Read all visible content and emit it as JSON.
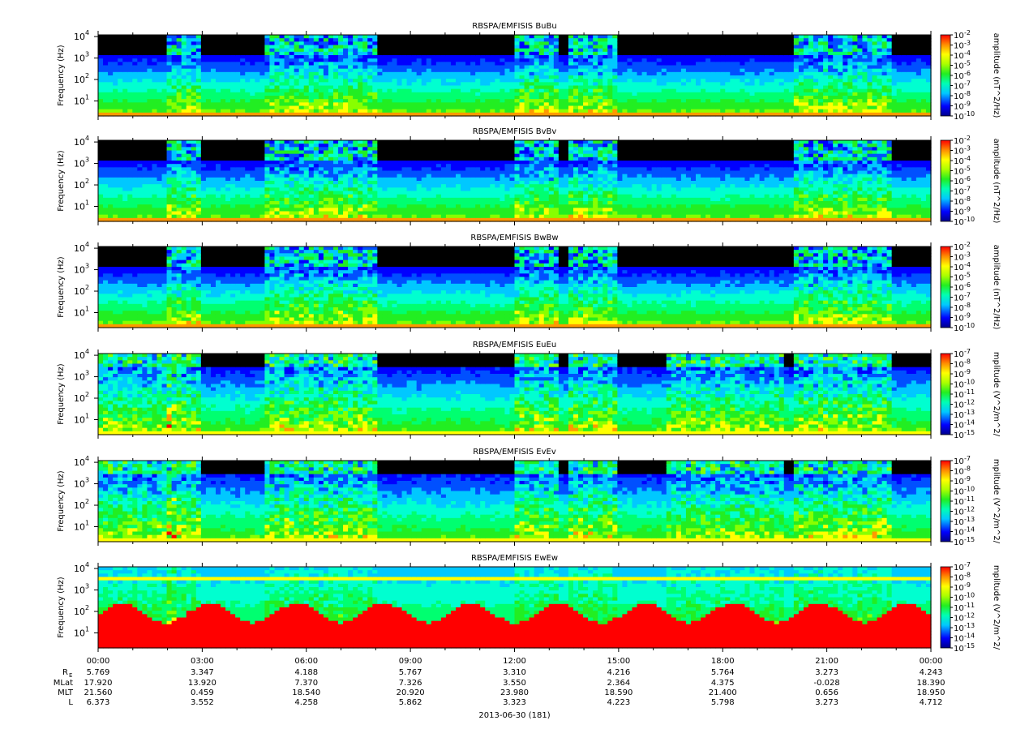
{
  "chart_data": {
    "type": "heatmap",
    "date_label": "2013-06-30 (181)",
    "xaxis": {
      "tick_labels": [
        "00:00",
        "03:00",
        "06:00",
        "09:00",
        "12:00",
        "15:00",
        "18:00",
        "21:00",
        "00:00"
      ],
      "range_hours": [
        0,
        24
      ]
    },
    "yaxis": {
      "label": "Frequency (Hz)",
      "scale": "log",
      "range_hz": [
        2,
        12000
      ],
      "tick_labels": [
        "10",
        "10",
        "10",
        "10"
      ],
      "tick_exponents": [
        "1",
        "2",
        "3",
        "4"
      ]
    },
    "panels": [
      {
        "title": "RBSPA/EMFISIS  BuBu",
        "colorbar_label": "amplitude (nT^2/Hz)",
        "cb_bases": [
          "10",
          "10",
          "10",
          "10",
          "10",
          "10",
          "10",
          "10",
          "10"
        ],
        "cb_exps": [
          "-2",
          "-3",
          "-4",
          "-5",
          "-6",
          "-7",
          "-8",
          "-9",
          "-10"
        ]
      },
      {
        "title": "RBSPA/EMFISIS  BvBv",
        "colorbar_label": "amplitude (nT^2/Hz)",
        "cb_bases": [
          "10",
          "10",
          "10",
          "10",
          "10",
          "10",
          "10",
          "10",
          "10"
        ],
        "cb_exps": [
          "-2",
          "-3",
          "-4",
          "-5",
          "-6",
          "-7",
          "-8",
          "-9",
          "-10"
        ]
      },
      {
        "title": "RBSPA/EMFISIS  BwBw",
        "colorbar_label": "amplitude (nT^2/Hz)",
        "cb_bases": [
          "10",
          "10",
          "10",
          "10",
          "10",
          "10",
          "10",
          "10",
          "10"
        ],
        "cb_exps": [
          "-2",
          "-3",
          "-4",
          "-5",
          "-6",
          "-7",
          "-8",
          "-9",
          "-10"
        ]
      },
      {
        "title": "RBSPA/EMFISIS  EuEu",
        "colorbar_label": "mplitude (V^2/m^2/",
        "cb_bases": [
          "10",
          "10",
          "10",
          "10",
          "10",
          "10",
          "10",
          "10",
          "10"
        ],
        "cb_exps": [
          "-7",
          "-8",
          "-9",
          "-10",
          "-11",
          "-12",
          "-13",
          "-14",
          "-15"
        ]
      },
      {
        "title": "RBSPA/EMFISIS  EvEv",
        "colorbar_label": "mplitude (V^2/m^2/",
        "cb_bases": [
          "10",
          "10",
          "10",
          "10",
          "10",
          "10",
          "10",
          "10",
          "10"
        ],
        "cb_exps": [
          "-7",
          "-8",
          "-9",
          "-10",
          "-11",
          "-12",
          "-13",
          "-14",
          "-15"
        ]
      },
      {
        "title": "RBSPA/EMFISIS  EwEw",
        "colorbar_label": "mplitude (V^2/m^2/",
        "cb_bases": [
          "10",
          "10",
          "10",
          "10",
          "10",
          "10",
          "10",
          "10",
          "10"
        ],
        "cb_exps": [
          "-7",
          "-8",
          "-9",
          "-10",
          "-11",
          "-12",
          "-13",
          "-14",
          "-15"
        ]
      }
    ],
    "ephemeris": {
      "rows": [
        {
          "label": "R",
          "subscript": "E",
          "values": [
            "5.769",
            "3.347",
            "4.188",
            "5.767",
            "3.310",
            "4.216",
            "5.764",
            "3.273",
            "4.243"
          ]
        },
        {
          "label": "MLat",
          "values": [
            "17.920",
            "13.920",
            "7.370",
            "7.326",
            "3.550",
            "2.364",
            "4.375",
            "-0.028",
            "18.390"
          ]
        },
        {
          "label": "MLT",
          "values": [
            "21.560",
            "0.459",
            "18.540",
            "20.920",
            "23.980",
            "18.590",
            "21.400",
            "0.656",
            "18.950"
          ]
        },
        {
          "label": "L",
          "values": [
            "6.373",
            "3.552",
            "4.258",
            "5.862",
            "3.323",
            "4.223",
            "5.798",
            "3.273",
            "4.712"
          ]
        }
      ]
    }
  }
}
